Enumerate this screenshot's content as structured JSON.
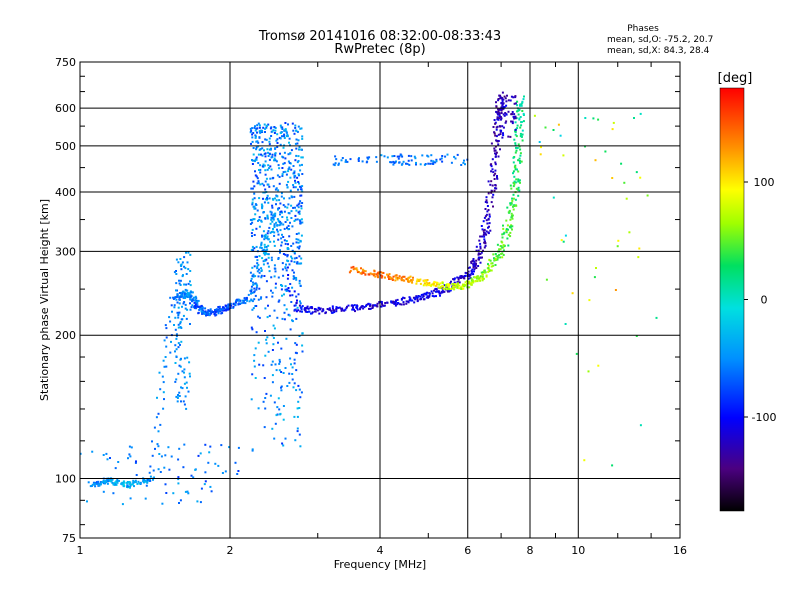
{
  "chart_data": {
    "type": "scatter",
    "title": "Tromsø 20141016 08:32:00-08:33:43",
    "subtitle": "RwPretec (8p)",
    "xlabel": "Frequency [MHz]",
    "ylabel": "Stationary phase Virtual Height [km]",
    "x_scale": "log",
    "y_scale": "log",
    "xlim": [
      1,
      16
    ],
    "ylim": [
      75,
      750
    ],
    "x_ticks": [
      1,
      2,
      4,
      6,
      8,
      10,
      16
    ],
    "y_ticks": [
      75,
      100,
      200,
      300,
      400,
      500,
      600,
      750
    ],
    "grid": true,
    "phase_stats": {
      "heading": "Phases",
      "line_o": "mean, sd,O: -75.2, 20.7",
      "line_x": "mean, sd,X:  84.3, 28.4"
    },
    "colorbar": {
      "label": "[deg]",
      "range": [
        -180,
        180
      ],
      "ticks": [
        100,
        0,
        -100
      ]
    },
    "series": [
      {
        "mode": "O",
        "description_points": [
          [
            1.05,
            97,
            -60
          ],
          [
            1.15,
            99,
            -40
          ],
          [
            1.25,
            97,
            -30
          ],
          [
            1.4,
            100,
            -50
          ],
          [
            1.55,
            240,
            -60
          ],
          [
            1.65,
            245,
            -50
          ],
          [
            1.72,
            230,
            -70
          ],
          [
            1.8,
            222,
            -60
          ],
          [
            1.9,
            225,
            -80
          ],
          [
            2.0,
            230,
            -70
          ],
          [
            2.2,
            240,
            -60
          ],
          [
            2.35,
            300,
            -40
          ],
          [
            2.5,
            360,
            -50
          ],
          [
            2.7,
            228,
            -100
          ],
          [
            3.0,
            225,
            -110
          ],
          [
            3.5,
            228,
            -110
          ],
          [
            4.0,
            232,
            -115
          ],
          [
            4.5,
            236,
            -110
          ],
          [
            5.0,
            242,
            -110
          ],
          [
            5.5,
            252,
            -115
          ],
          [
            6.0,
            268,
            -120
          ],
          [
            6.3,
            290,
            -120
          ],
          [
            6.55,
            340,
            -120
          ],
          [
            6.75,
            430,
            -125
          ],
          [
            6.9,
            560,
            -125
          ],
          [
            7.0,
            640,
            -130
          ]
        ]
      },
      {
        "mode": "X",
        "description_points": [
          [
            3.5,
            275,
            140
          ],
          [
            4.0,
            268,
            140
          ],
          [
            4.5,
            262,
            130
          ],
          [
            5.0,
            258,
            100
          ],
          [
            5.5,
            252,
            80
          ],
          [
            6.0,
            255,
            70
          ],
          [
            6.5,
            270,
            60
          ],
          [
            7.0,
            300,
            50
          ],
          [
            7.3,
            350,
            40
          ],
          [
            7.5,
            420,
            30
          ],
          [
            7.6,
            520,
            20
          ],
          [
            7.7,
            630,
            15
          ]
        ]
      }
    ]
  }
}
